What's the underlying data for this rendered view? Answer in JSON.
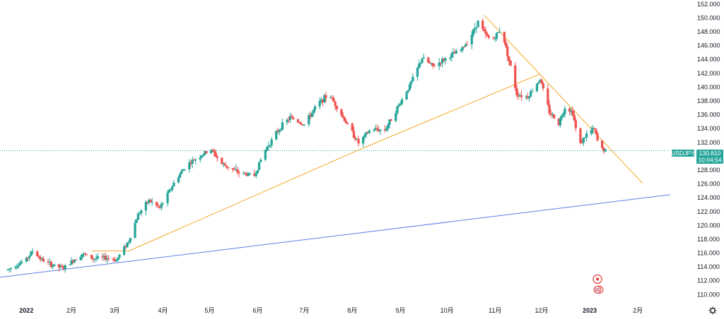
{
  "chart_data": {
    "type": "candlestick",
    "symbol": "USDJPY",
    "last_price": "130.810",
    "countdown": "10:04:54",
    "colors": {
      "up": "#26a69a",
      "down": "#ef5350",
      "trend_orange": "#f5a623",
      "trend_blue": "#5b7ee5",
      "price_line": "#26a69a",
      "badge_bg": "#26a69a",
      "event_marker": "#e53935"
    },
    "ylim": [
      108.4,
      152.6
    ],
    "y_ticks": [
      "152.000",
      "150.000",
      "148.000",
      "146.000",
      "144.000",
      "142.000",
      "140.000",
      "138.000",
      "136.000",
      "134.000",
      "132.000",
      "130.000",
      "128.000",
      "126.000",
      "124.000",
      "122.000",
      "120.000",
      "118.000",
      "116.000",
      "114.000",
      "112.000",
      "110.000"
    ],
    "x_ticks": [
      {
        "label": "2022",
        "index": 0
      },
      {
        "label": "2月",
        "index": 29
      },
      {
        "label": "3月",
        "index": 57
      },
      {
        "label": "4月",
        "index": 88
      },
      {
        "label": "5月",
        "index": 118
      },
      {
        "label": "6月",
        "index": 149
      },
      {
        "label": "7月",
        "index": 179
      },
      {
        "label": "8月",
        "index": 210
      },
      {
        "label": "9月",
        "index": 241
      },
      {
        "label": "10月",
        "index": 271
      },
      {
        "label": "11月",
        "index": 302
      },
      {
        "label": "12月",
        "index": 332
      },
      {
        "label": "2023",
        "index": 363
      },
      {
        "label": "2月",
        "index": 394
      }
    ],
    "x_range_days": [
      -17,
      424
    ],
    "anchors": [
      [
        -12,
        113.6
      ],
      [
        0,
        115.1
      ],
      [
        4,
        116.3
      ],
      [
        10,
        115.0
      ],
      [
        17,
        114.2
      ],
      [
        24,
        113.8
      ],
      [
        31,
        115.1
      ],
      [
        36,
        115.9
      ],
      [
        43,
        115.2
      ],
      [
        52,
        115.3
      ],
      [
        58,
        115.0
      ],
      [
        66,
        117.8
      ],
      [
        72,
        121.6
      ],
      [
        79,
        123.6
      ],
      [
        86,
        122.5
      ],
      [
        96,
        126.5
      ],
      [
        103,
        128.7
      ],
      [
        113,
        130.2
      ],
      [
        119,
        131.0
      ],
      [
        126,
        128.9
      ],
      [
        137,
        127.6
      ],
      [
        147,
        127.2
      ],
      [
        153,
        130.6
      ],
      [
        164,
        134.3
      ],
      [
        170,
        135.6
      ],
      [
        179,
        134.6
      ],
      [
        188,
        137.6
      ],
      [
        195,
        139.0
      ],
      [
        202,
        136.4
      ],
      [
        214,
        131.9
      ],
      [
        222,
        133.9
      ],
      [
        231,
        133.8
      ],
      [
        239,
        137.0
      ],
      [
        247,
        140.2
      ],
      [
        255,
        144.2
      ],
      [
        262,
        143.0
      ],
      [
        272,
        144.4
      ],
      [
        280,
        145.3
      ],
      [
        286,
        147.2
      ],
      [
        291,
        149.5
      ],
      [
        296,
        147.5
      ],
      [
        300,
        146.7
      ],
      [
        306,
        148.5
      ],
      [
        313,
        142.0
      ],
      [
        316,
        139.0
      ],
      [
        323,
        138.6
      ],
      [
        331,
        141.2
      ],
      [
        337,
        136.4
      ],
      [
        343,
        134.8
      ],
      [
        347,
        137.1
      ],
      [
        352,
        136.4
      ],
      [
        356,
        131.5
      ],
      [
        362,
        133.5
      ],
      [
        366,
        133.9
      ],
      [
        369,
        131.4
      ],
      [
        373,
        130.8
      ]
    ],
    "trendlines": [
      {
        "color": "orange",
        "from": [
          42,
          116.3
        ],
        "to": [
          66,
          116.3
        ]
      },
      {
        "color": "orange",
        "from": [
          66,
          116.3
        ],
        "to": [
          214,
          130.9
        ]
      },
      {
        "color": "orange",
        "from": [
          214,
          130.9
        ],
        "to": [
          331,
          141.9
        ]
      },
      {
        "color": "orange",
        "from": [
          295,
          150.4
        ],
        "to": [
          397,
          126.1
        ]
      },
      {
        "color": "blue",
        "from": [
          -17,
          112.5
        ],
        "to": [
          424,
          124.7
        ]
      }
    ],
    "event_markers": [
      {
        "index": 368,
        "value": 111.0
      }
    ]
  }
}
